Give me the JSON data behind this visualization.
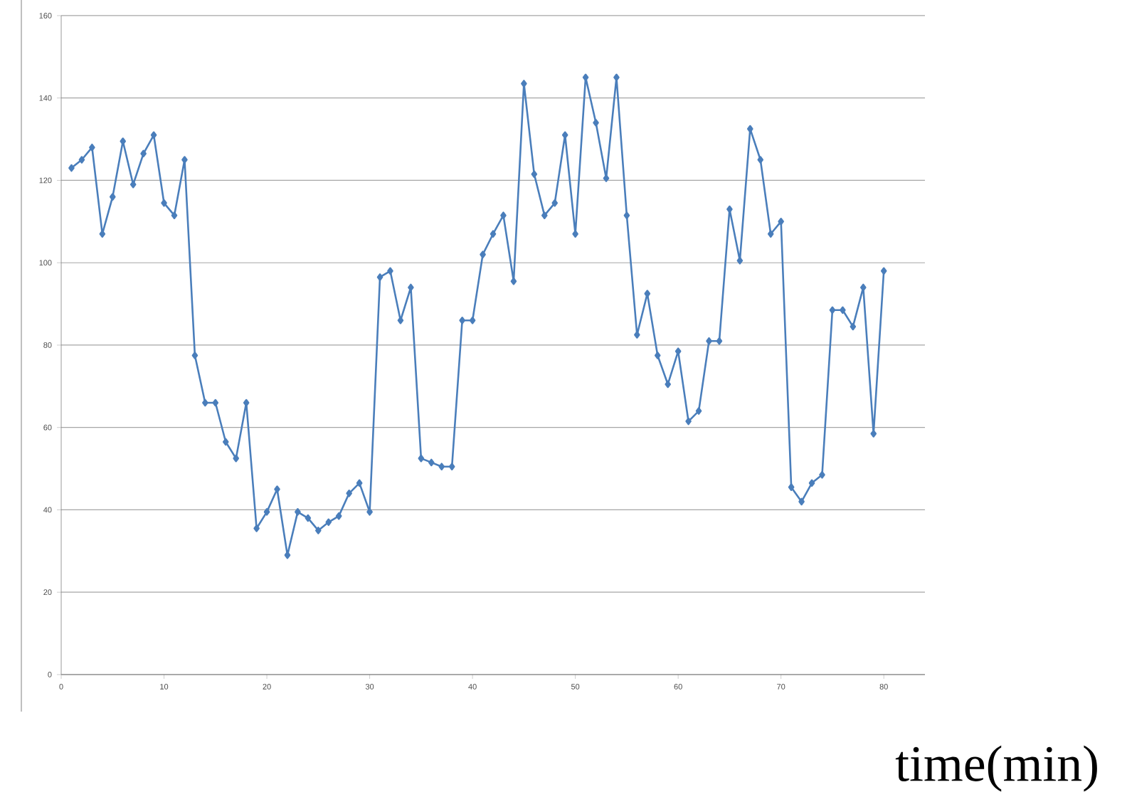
{
  "chart_data": {
    "type": "line",
    "xlabel": "time(min)",
    "x": [
      1,
      2,
      3,
      4,
      5,
      6,
      7,
      8,
      9,
      10,
      11,
      12,
      13,
      14,
      15,
      16,
      17,
      18,
      19,
      20,
      21,
      22,
      23,
      24,
      25,
      26,
      27,
      28,
      29,
      30,
      31,
      32,
      33,
      34,
      35,
      36,
      37,
      38,
      39,
      40,
      41,
      42,
      43,
      44,
      45,
      46,
      47,
      48,
      49,
      50,
      51,
      52,
      53,
      54,
      55,
      56,
      57,
      58,
      59,
      60,
      61,
      62,
      63,
      64,
      65,
      66,
      67,
      68,
      69,
      70,
      71,
      72,
      73,
      74,
      75,
      76,
      77,
      78,
      79,
      80
    ],
    "series": [
      {
        "color": "#4a7ebb",
        "values": [
          123,
          125,
          128,
          107,
          116,
          129.5,
          119,
          126.5,
          131,
          114.5,
          111.5,
          125,
          77.5,
          66,
          66,
          56.5,
          52.5,
          66,
          35.5,
          39.5,
          45,
          29,
          39.5,
          38,
          35,
          37,
          38.5,
          44,
          46.5,
          39.5,
          96.5,
          98,
          86,
          94,
          52.5,
          51.5,
          50.5,
          50.5,
          86,
          86,
          102,
          107,
          111.5,
          95.5,
          143.5,
          121.5,
          111.5,
          114.5,
          131,
          107,
          145,
          134,
          120.5,
          145,
          111.5,
          82.5,
          92.5,
          77.5,
          70.5,
          78.5,
          61.5,
          64,
          81,
          81,
          113,
          100.5,
          132.5,
          125,
          107,
          110,
          45.5,
          42,
          46.5,
          48.5,
          88.5,
          88.5,
          84.5,
          94,
          58.5,
          98
        ]
      }
    ],
    "xlim": [
      0,
      84
    ],
    "ylim": [
      0,
      160
    ],
    "xticks": [
      0,
      10,
      20,
      30,
      40,
      50,
      60,
      70,
      80
    ],
    "yticks": [
      0,
      20,
      40,
      60,
      80,
      100,
      120,
      140,
      160
    ],
    "grid": "y",
    "marker": "diamond",
    "line_style": "solid"
  }
}
